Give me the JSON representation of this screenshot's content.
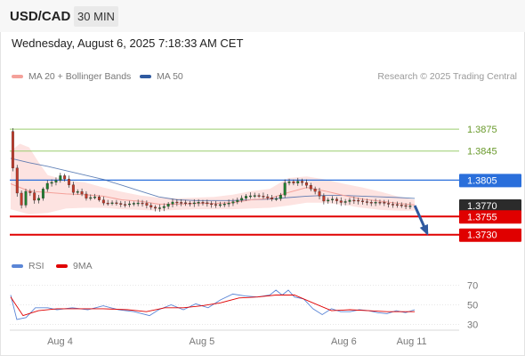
{
  "header": {
    "symbol": "USD/CAD",
    "timeframe": "30 MIN"
  },
  "datetime": "Wednesday, August 6, 2025 7:18:33 AM CET",
  "legend": {
    "ma20": {
      "label": "MA 20 + Bollinger Bands",
      "color": "#f4a19a"
    },
    "ma50": {
      "label": "MA 50",
      "color": "#2f5aa0"
    }
  },
  "copyright": "Research © 2025 Trading Central",
  "rsi_legend": {
    "rsi": {
      "label": "RSI",
      "color": "#5b86d6"
    },
    "ma9": {
      "label": "9MA",
      "color": "#e00000"
    }
  },
  "chart_data": {
    "type": "candlestick",
    "price_ylim": [
      1.3715,
      1.3885
    ],
    "levels": [
      {
        "value": 1.3875,
        "label": "1.3875",
        "kind": "resistance",
        "color": "#9acd6e"
      },
      {
        "value": 1.3845,
        "label": "1.3845",
        "kind": "resistance",
        "color": "#9acd6e"
      },
      {
        "value": 1.3805,
        "label": "1.3805",
        "kind": "pivot",
        "color": "#2a6fdb"
      },
      {
        "value": 1.377,
        "label": "1.3770",
        "kind": "last",
        "color": "#2b2b2b"
      },
      {
        "value": 1.3755,
        "label": "1.3755",
        "kind": "support",
        "color": "#e00000"
      },
      {
        "value": 1.373,
        "label": "1.3730",
        "kind": "support",
        "color": "#e00000"
      }
    ],
    "price_path": [
      [
        0,
        1.3872
      ],
      [
        2,
        1.38
      ],
      [
        4,
        1.3768
      ],
      [
        6,
        1.3795
      ],
      [
        9,
        1.3773
      ],
      [
        12,
        1.38
      ],
      [
        15,
        1.3803
      ],
      [
        17,
        1.3812
      ],
      [
        19,
        1.3803
      ],
      [
        21,
        1.3788
      ],
      [
        23,
        1.379
      ],
      [
        25,
        1.378
      ],
      [
        28,
        1.3782
      ],
      [
        31,
        1.3773
      ],
      [
        34,
        1.3774
      ],
      [
        37,
        1.3771
      ],
      [
        40,
        1.3773
      ],
      [
        43,
        1.3774
      ],
      [
        46,
        1.3768
      ],
      [
        48,
        1.3766
      ],
      [
        50,
        1.3768
      ],
      [
        53,
        1.3775
      ],
      [
        56,
        1.3774
      ],
      [
        59,
        1.3773
      ],
      [
        62,
        1.3775
      ],
      [
        65,
        1.3772
      ],
      [
        68,
        1.3771
      ],
      [
        71,
        1.3773
      ],
      [
        74,
        1.3777
      ],
      [
        77,
        1.3783
      ],
      [
        80,
        1.3784
      ],
      [
        83,
        1.3782
      ],
      [
        86,
        1.3778
      ],
      [
        88,
        1.3782
      ],
      [
        90,
        1.3806
      ],
      [
        92,
        1.38
      ],
      [
        94,
        1.3804
      ],
      [
        96,
        1.38
      ],
      [
        98,
        1.3793
      ],
      [
        100,
        1.3788
      ],
      [
        102,
        1.3776
      ],
      [
        105,
        1.3779
      ],
      [
        108,
        1.3774
      ],
      [
        111,
        1.3778
      ],
      [
        114,
        1.3776
      ],
      [
        117,
        1.3774
      ],
      [
        120,
        1.3775
      ],
      [
        123,
        1.3772
      ],
      [
        126,
        1.3771
      ],
      [
        129,
        1.3769
      ],
      [
        131,
        1.377
      ]
    ],
    "ma20": [
      [
        0,
        1.38
      ],
      [
        6,
        1.379
      ],
      [
        12,
        1.3788
      ],
      [
        18,
        1.3786
      ],
      [
        24,
        1.3785
      ],
      [
        30,
        1.3783
      ],
      [
        36,
        1.3778
      ],
      [
        42,
        1.3776
      ],
      [
        48,
        1.3772
      ],
      [
        54,
        1.3772
      ],
      [
        60,
        1.3773
      ],
      [
        66,
        1.3773
      ],
      [
        72,
        1.3774
      ],
      [
        78,
        1.3778
      ],
      [
        84,
        1.378
      ],
      [
        90,
        1.3788
      ],
      [
        96,
        1.3795
      ],
      [
        102,
        1.379
      ],
      [
        108,
        1.3784
      ],
      [
        114,
        1.3779
      ],
      [
        120,
        1.3776
      ],
      [
        126,
        1.3773
      ],
      [
        131,
        1.3771
      ]
    ],
    "ma50": [
      [
        0,
        1.3835
      ],
      [
        6,
        1.3829
      ],
      [
        12,
        1.3824
      ],
      [
        18,
        1.3818
      ],
      [
        24,
        1.3812
      ],
      [
        30,
        1.3806
      ],
      [
        36,
        1.3798
      ],
      [
        42,
        1.379
      ],
      [
        48,
        1.3782
      ],
      [
        54,
        1.3778
      ],
      [
        60,
        1.3777
      ],
      [
        66,
        1.3777
      ],
      [
        72,
        1.3777
      ],
      [
        78,
        1.3778
      ],
      [
        84,
        1.3779
      ],
      [
        90,
        1.3781
      ],
      [
        96,
        1.3783
      ],
      [
        102,
        1.3784
      ],
      [
        108,
        1.3784
      ],
      [
        114,
        1.3783
      ],
      [
        120,
        1.3782
      ],
      [
        126,
        1.3781
      ],
      [
        131,
        1.378
      ]
    ],
    "bb_upper": [
      [
        0,
        1.3845
      ],
      [
        3,
        1.3855
      ],
      [
        6,
        1.385
      ],
      [
        9,
        1.383
      ],
      [
        12,
        1.3812
      ],
      [
        18,
        1.3805
      ],
      [
        24,
        1.3802
      ],
      [
        30,
        1.3795
      ],
      [
        36,
        1.3789
      ],
      [
        42,
        1.3784
      ],
      [
        48,
        1.3781
      ],
      [
        54,
        1.378
      ],
      [
        60,
        1.3781
      ],
      [
        66,
        1.3782
      ],
      [
        72,
        1.3785
      ],
      [
        78,
        1.379
      ],
      [
        84,
        1.3793
      ],
      [
        90,
        1.3808
      ],
      [
        96,
        1.381
      ],
      [
        102,
        1.3806
      ],
      [
        108,
        1.38
      ],
      [
        114,
        1.3795
      ],
      [
        120,
        1.3789
      ],
      [
        126,
        1.3782
      ],
      [
        131,
        1.3778
      ]
    ],
    "bb_lower": [
      [
        0,
        1.3765
      ],
      [
        6,
        1.3758
      ],
      [
        12,
        1.376
      ],
      [
        18,
        1.3766
      ],
      [
        24,
        1.3767
      ],
      [
        30,
        1.3767
      ],
      [
        36,
        1.3765
      ],
      [
        42,
        1.3764
      ],
      [
        48,
        1.3763
      ],
      [
        54,
        1.3764
      ],
      [
        60,
        1.3765
      ],
      [
        66,
        1.3765
      ],
      [
        72,
        1.3765
      ],
      [
        78,
        1.3766
      ],
      [
        84,
        1.3767
      ],
      [
        90,
        1.377
      ],
      [
        96,
        1.3774
      ],
      [
        102,
        1.3774
      ],
      [
        108,
        1.3771
      ],
      [
        114,
        1.3767
      ],
      [
        120,
        1.3764
      ],
      [
        126,
        1.3763
      ],
      [
        131,
        1.3763
      ]
    ],
    "forecast": [
      [
        131,
        1.377
      ],
      [
        135,
        1.3732
      ]
    ],
    "x_ticks": [
      {
        "label": "Aug 4",
        "at": 16
      },
      {
        "label": "Aug 5",
        "at": 62
      },
      {
        "label": "Aug 6",
        "at": 108
      },
      {
        "label": "Aug 11",
        "at": 130
      }
    ],
    "x_range": [
      0,
      135
    ],
    "rsi": {
      "ylim": [
        25,
        75
      ],
      "ticks": [
        70,
        50,
        30
      ],
      "values": [
        [
          0,
          60
        ],
        [
          2,
          35
        ],
        [
          5,
          37
        ],
        [
          8,
          47
        ],
        [
          12,
          47
        ],
        [
          15,
          45
        ],
        [
          20,
          47
        ],
        [
          25,
          45
        ],
        [
          30,
          49
        ],
        [
          35,
          45
        ],
        [
          40,
          43
        ],
        [
          45,
          39
        ],
        [
          48,
          45
        ],
        [
          52,
          50
        ],
        [
          56,
          45
        ],
        [
          60,
          51
        ],
        [
          64,
          47
        ],
        [
          68,
          55
        ],
        [
          72,
          61
        ],
        [
          76,
          59
        ],
        [
          80,
          58
        ],
        [
          84,
          60
        ],
        [
          86,
          65
        ],
        [
          88,
          60
        ],
        [
          90,
          65
        ],
        [
          92,
          58
        ],
        [
          95,
          56
        ],
        [
          98,
          46
        ],
        [
          101,
          40
        ],
        [
          104,
          46
        ],
        [
          107,
          43
        ],
        [
          110,
          43
        ],
        [
          113,
          45
        ],
        [
          116,
          44
        ],
        [
          119,
          42
        ],
        [
          122,
          41
        ],
        [
          125,
          44
        ],
        [
          128,
          42
        ],
        [
          131,
          45
        ]
      ],
      "ma9": [
        [
          0,
          58
        ],
        [
          4,
          39
        ],
        [
          9,
          44
        ],
        [
          15,
          46
        ],
        [
          22,
          46
        ],
        [
          30,
          46
        ],
        [
          38,
          45
        ],
        [
          44,
          43
        ],
        [
          50,
          47
        ],
        [
          56,
          47
        ],
        [
          62,
          49
        ],
        [
          68,
          52
        ],
        [
          74,
          57
        ],
        [
          80,
          58
        ],
        [
          86,
          60
        ],
        [
          92,
          60
        ],
        [
          98,
          52
        ],
        [
          104,
          44
        ],
        [
          110,
          45
        ],
        [
          116,
          44
        ],
        [
          122,
          43
        ],
        [
          128,
          43
        ],
        [
          131,
          43
        ]
      ]
    }
  }
}
